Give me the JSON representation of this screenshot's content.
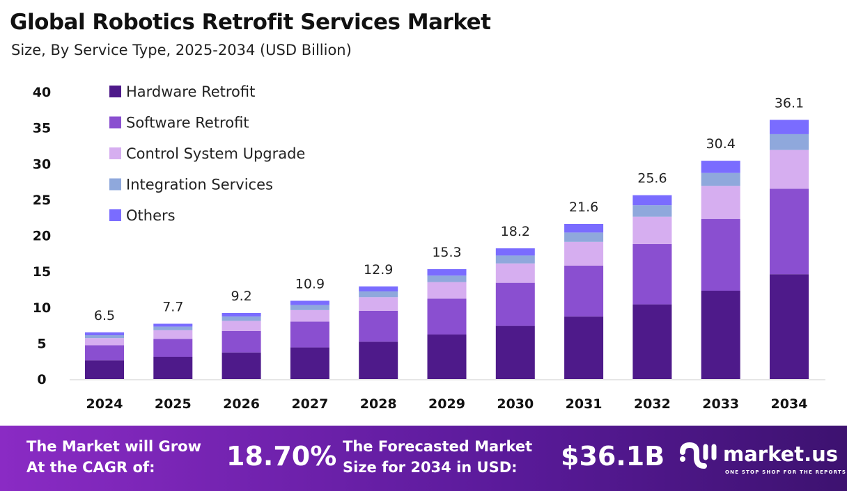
{
  "header": {
    "title": "Global Robotics Retrofit Services Market",
    "subtitle": "Size, By Service Type, 2025-2034 (USD Billion)"
  },
  "chart_data": {
    "type": "bar",
    "stacked": true,
    "categories": [
      "2024",
      "2025",
      "2026",
      "2027",
      "2028",
      "2029",
      "2030",
      "2031",
      "2032",
      "2033",
      "2034"
    ],
    "totals": [
      6.5,
      7.7,
      9.2,
      10.9,
      12.9,
      15.3,
      18.2,
      21.6,
      25.6,
      30.4,
      36.1
    ],
    "series": [
      {
        "name": "Hardware Retrofit",
        "color": "#4e1a8a",
        "values": [
          2.6,
          3.1,
          3.7,
          4.4,
          5.2,
          6.2,
          7.4,
          8.7,
          10.4,
          12.3,
          14.6
        ]
      },
      {
        "name": "Software Retrofit",
        "color": "#8a4fd0",
        "values": [
          2.1,
          2.5,
          3.0,
          3.6,
          4.3,
          5.0,
          6.0,
          7.1,
          8.4,
          10.0,
          11.9
        ]
      },
      {
        "name": "Control System Upgrade",
        "color": "#d6aef0",
        "values": [
          1.0,
          1.2,
          1.4,
          1.6,
          1.9,
          2.3,
          2.7,
          3.3,
          3.8,
          4.6,
          5.4
        ]
      },
      {
        "name": "Integration Services",
        "color": "#8fa8dc",
        "values": [
          0.4,
          0.5,
          0.6,
          0.7,
          0.8,
          0.9,
          1.1,
          1.3,
          1.6,
          1.8,
          2.2
        ]
      },
      {
        "name": "Others",
        "color": "#7a6cff",
        "values": [
          0.4,
          0.4,
          0.5,
          0.6,
          0.7,
          0.9,
          1.0,
          1.2,
          1.4,
          1.7,
          2.0
        ]
      }
    ],
    "yticks": [
      "0",
      "5",
      "10",
      "15",
      "20",
      "25",
      "30",
      "35",
      "40"
    ],
    "ylim": [
      0,
      40
    ],
    "grid": false,
    "legend": "top-left"
  },
  "footer": {
    "cagr_text_1": "The Market will Grow",
    "cagr_text_2": "At the CAGR of:",
    "cagr_value": "18.70%",
    "forecast_text_1": "The Forecasted Market",
    "forecast_text_2": "Size for 2034 in USD:",
    "forecast_value": "$36.1B",
    "logo_name": "market.us",
    "logo_tagline": "ONE STOP SHOP FOR THE REPORTS"
  }
}
